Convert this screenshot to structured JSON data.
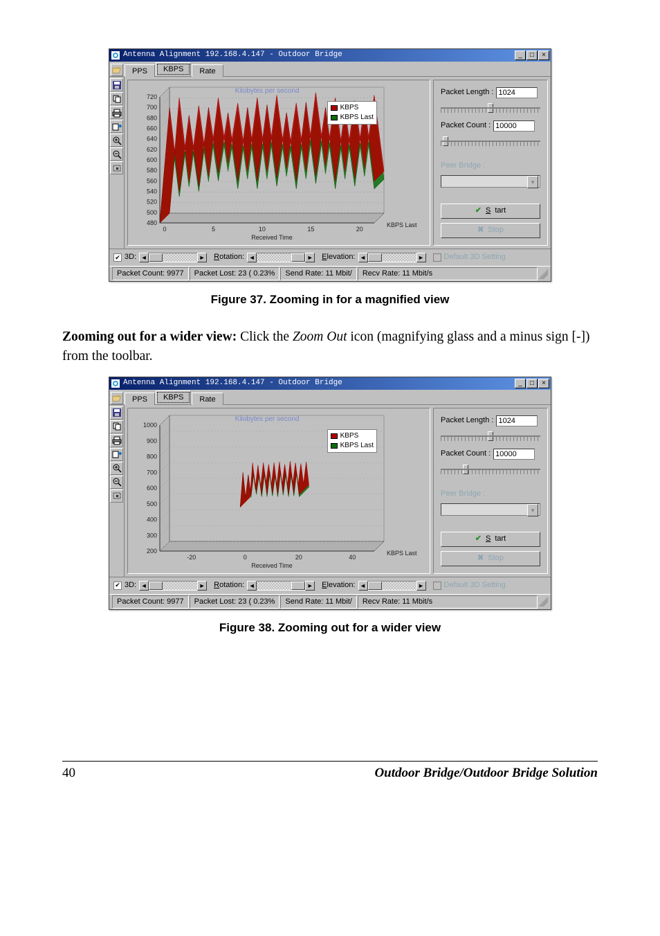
{
  "common": {
    "window_title": "Antenna Alignment 192.168.4.147 - Outdoor Bridge",
    "tabs": {
      "pps": "PPS",
      "kbps": "KBPS",
      "rate": "Rate"
    },
    "right": {
      "packet_length_label": "Packet Length :",
      "packet_length_value": "1024",
      "packet_count_label": "Packet Count :",
      "packet_count_value": "10000",
      "peer_bridge_label": "Peer Bridge :",
      "start_label": "Start",
      "stop_label": "Stop"
    },
    "bottom": {
      "threeD": "3D:",
      "rotation": "Rotation:",
      "elevation": "Elevation:",
      "default3d": "Default 3D Setting"
    },
    "status": {
      "packet_count": "Packet Count: 9977",
      "packet_lost": "Packet Lost: 23 ( 0.23%",
      "send_rate": "Send Rate: 11 Mbit/",
      "recv_rate": "Recv Rate: 11 Mbit/s"
    },
    "legend": {
      "kbps": "KBPS",
      "kbps_last": "KBPS Last"
    },
    "chart_common": {
      "title": "Kilobytes per second",
      "xlabel": "Received Time",
      "ylast": "KBPS Last",
      "title_color": "#1030e0",
      "kbps_color": "#b00000",
      "kbps_last_color": "#0a6c0a",
      "grid_color": "#a0a0a0",
      "axis_color": "#303030",
      "background_color": "#c0c0c0",
      "font_size_axis": 9,
      "font_size_title": 10
    }
  },
  "figure37": {
    "caption": "Figure 37.  Zooming in for a magnified view",
    "chart": {
      "type": "line",
      "ylim": [
        480,
        720
      ],
      "ytick_step": 20,
      "xlim": [
        0,
        22
      ],
      "xticks": [
        0,
        5,
        10,
        15,
        20
      ],
      "slider1_pos_pct": 50,
      "slider2_pos_pct": 5,
      "x_values": [
        0,
        1,
        2,
        3,
        4,
        5,
        6,
        7,
        8,
        9,
        10,
        11,
        12,
        13,
        14,
        15,
        16,
        17,
        18,
        19,
        20,
        21,
        22
      ],
      "kbps_values": [
        480,
        700,
        540,
        685,
        550,
        700,
        575,
        690,
        560,
        700,
        560,
        705,
        565,
        690,
        560,
        710,
        570,
        700,
        560,
        695,
        565,
        705,
        560
      ],
      "kbps_last_values": [
        480,
        680,
        530,
        670,
        540,
        685,
        560,
        675,
        545,
        685,
        545,
        690,
        550,
        675,
        545,
        695,
        555,
        685,
        545,
        680,
        550,
        690,
        545
      ]
    }
  },
  "figure38": {
    "caption": "Figure 38.  Zooming out for a wider view",
    "chart": {
      "type": "line",
      "ylim": [
        200,
        1000
      ],
      "ytick_step": 100,
      "xlim": [
        -30,
        50
      ],
      "xticks": [
        -20,
        0,
        20,
        40
      ],
      "slider1_pos_pct": 50,
      "slider2_pos_pct": 25,
      "x_values": [
        0,
        1,
        2,
        3,
        4,
        5,
        6,
        7,
        8,
        9,
        10,
        11,
        12,
        13,
        14,
        15,
        16,
        17,
        18,
        19,
        20,
        21,
        22
      ],
      "kbps_values": [
        480,
        700,
        540,
        685,
        550,
        700,
        575,
        690,
        560,
        700,
        560,
        705,
        565,
        690,
        560,
        710,
        570,
        700,
        560,
        695,
        565,
        705,
        560
      ],
      "kbps_last_values": [
        480,
        680,
        530,
        670,
        540,
        685,
        560,
        675,
        545,
        685,
        545,
        690,
        550,
        675,
        545,
        695,
        555,
        685,
        545,
        680,
        550,
        690,
        545
      ]
    }
  },
  "body": {
    "para_bold": "Zooming out for a wider view:",
    "para_rest1": " Click the ",
    "para_em": "Zoom Out",
    "para_rest2": " icon (magnifying glass and a minus sign [-]) from the toolbar."
  },
  "footer": {
    "page": "40",
    "title": "Outdoor Bridge/Outdoor Bridge Solution"
  }
}
